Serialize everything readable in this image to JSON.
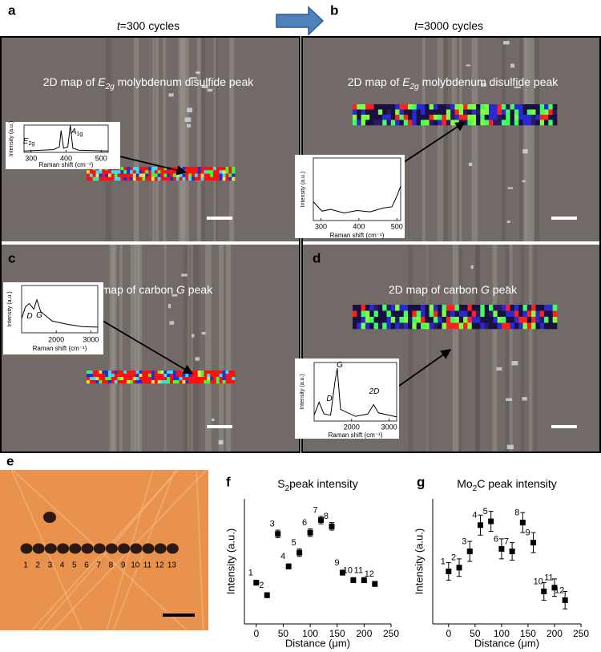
{
  "panels": [
    {
      "label": "a",
      "header": [
        {
          "text": "t",
          "style": "italic"
        },
        {
          "text": "=300 cycles"
        }
      ],
      "map_title": [
        {
          "text": "2D map of "
        },
        {
          "text": "E",
          "style": "italic"
        },
        {
          "text": "2g",
          "style": "italic-sub"
        },
        {
          "text": " molybdenum disulfide peak"
        }
      ],
      "inset": {
        "ylabel": "Intensity (a.u.)",
        "xlabel": "Raman shift (cm⁻¹)",
        "xlim": [
          280,
          520
        ],
        "xticks": [
          300,
          400,
          500
        ],
        "peaks": [
          [
            {
              "text": "E",
              "style": "italic"
            },
            {
              "text": "2g",
              "style": "sub"
            }
          ],
          [
            {
              "text": "A",
              "style": "italic"
            },
            {
              "text": "1g",
              "style": "sub"
            }
          ]
        ]
      }
    },
    {
      "label": "b",
      "header": [
        {
          "text": "t",
          "style": "italic"
        },
        {
          "text": "=3000 cycles"
        }
      ],
      "map_title": [
        {
          "text": "2D map of "
        },
        {
          "text": "E",
          "style": "italic"
        },
        {
          "text": "2g",
          "style": "italic-sub"
        },
        {
          "text": " molybdenum disulfide peak"
        }
      ],
      "inset": {
        "ylabel": "Intensity (a.u.)",
        "xlabel": "Raman shift (cm⁻¹)",
        "xlim": [
          280,
          510
        ],
        "xticks": [
          300,
          400,
          500
        ],
        "peaks": []
      }
    },
    {
      "label": "c",
      "map_title": [
        {
          "text": "2D map of carbon "
        },
        {
          "text": "G",
          "style": "italic"
        },
        {
          "text": " peak"
        }
      ],
      "inset": {
        "ylabel": "Intensity (a.u.)",
        "xlabel": "Raman shift (cm⁻¹)",
        "xlim": [
          1000,
          3200
        ],
        "xticks": [
          2000,
          3000
        ],
        "peaks": [
          [
            {
              "text": "D",
              "style": "italic"
            }
          ],
          [
            {
              "text": "G",
              "style": "italic"
            }
          ]
        ]
      }
    },
    {
      "label": "d",
      "map_title": [
        {
          "text": "2D map of carbon "
        },
        {
          "text": "G",
          "style": "italic"
        },
        {
          "text": " peak"
        }
      ],
      "inset": {
        "ylabel": "Intensity (a.u.)",
        "xlabel": "Raman shift (cm⁻¹)",
        "xlim": [
          1000,
          3200
        ],
        "xticks": [
          2000,
          3000
        ],
        "peaks": [
          [
            {
              "text": "D",
              "style": "italic"
            }
          ],
          [
            {
              "text": "G",
              "style": "italic"
            }
          ],
          [
            {
              "text": "2D",
              "style": "italic"
            }
          ]
        ]
      }
    },
    {
      "label": "e",
      "spot_labels": [
        "1",
        "2",
        "3",
        "4",
        "5",
        "6",
        "7",
        "8",
        "9",
        "10",
        "11",
        "12",
        "13"
      ]
    }
  ],
  "chart_data": [
    {
      "type": "scatter",
      "label": "f",
      "title": [
        {
          "text": "S"
        },
        {
          "text": "2",
          "style": "sub"
        },
        {
          "text": "peak intensity"
        }
      ],
      "xlabel": "Distance (μm)",
      "ylabel": "Intensity (a.u.)",
      "x": [
        0,
        20,
        40,
        60,
        80,
        100,
        120,
        140,
        160,
        180,
        200,
        220
      ],
      "values": [
        3.3,
        2.3,
        7.2,
        4.6,
        5.7,
        7.3,
        8.3,
        7.8,
        4.1,
        3.5,
        3.5,
        3.2
      ],
      "errors": [
        0.2,
        0.2,
        0.3,
        0.2,
        0.3,
        0.3,
        0.3,
        0.3,
        0.2,
        0.2,
        0.2,
        0.2
      ],
      "point_labels": [
        "1",
        "2",
        "3",
        "4",
        "5",
        "6",
        "7",
        "8",
        "9",
        "10",
        "11",
        "12"
      ],
      "xlim": [
        -22,
        250
      ],
      "xticks": [
        0,
        50,
        100,
        150,
        200,
        250
      ],
      "ylim": [
        0,
        10
      ],
      "color": "#000000"
    },
    {
      "type": "scatter",
      "label": "g",
      "title": [
        {
          "text": "Mo"
        },
        {
          "text": "2",
          "style": "sub"
        },
        {
          "text": "C peak intensity"
        }
      ],
      "xlabel": "Distance (μm)",
      "ylabel": "Intensity (a.u.)",
      "x": [
        0,
        20,
        40,
        60,
        80,
        100,
        120,
        140,
        160,
        180,
        200,
        220
      ],
      "values": [
        4.2,
        4.5,
        5.8,
        7.9,
        8.2,
        6.0,
        5.8,
        8.1,
        6.5,
        2.6,
        2.9,
        1.9
      ],
      "errors": [
        0.7,
        0.7,
        0.8,
        0.8,
        0.8,
        0.8,
        0.7,
        0.8,
        0.8,
        0.7,
        0.7,
        0.7
      ],
      "point_labels": [
        "1",
        "2",
        "3",
        "4",
        "5",
        "6",
        "7",
        "8",
        "9",
        "10",
        "11",
        "12"
      ],
      "xlim": [
        -30,
        250
      ],
      "xticks": [
        0,
        50,
        100,
        150,
        200,
        250
      ],
      "ylim": [
        0,
        10
      ],
      "color": "#000000"
    }
  ]
}
